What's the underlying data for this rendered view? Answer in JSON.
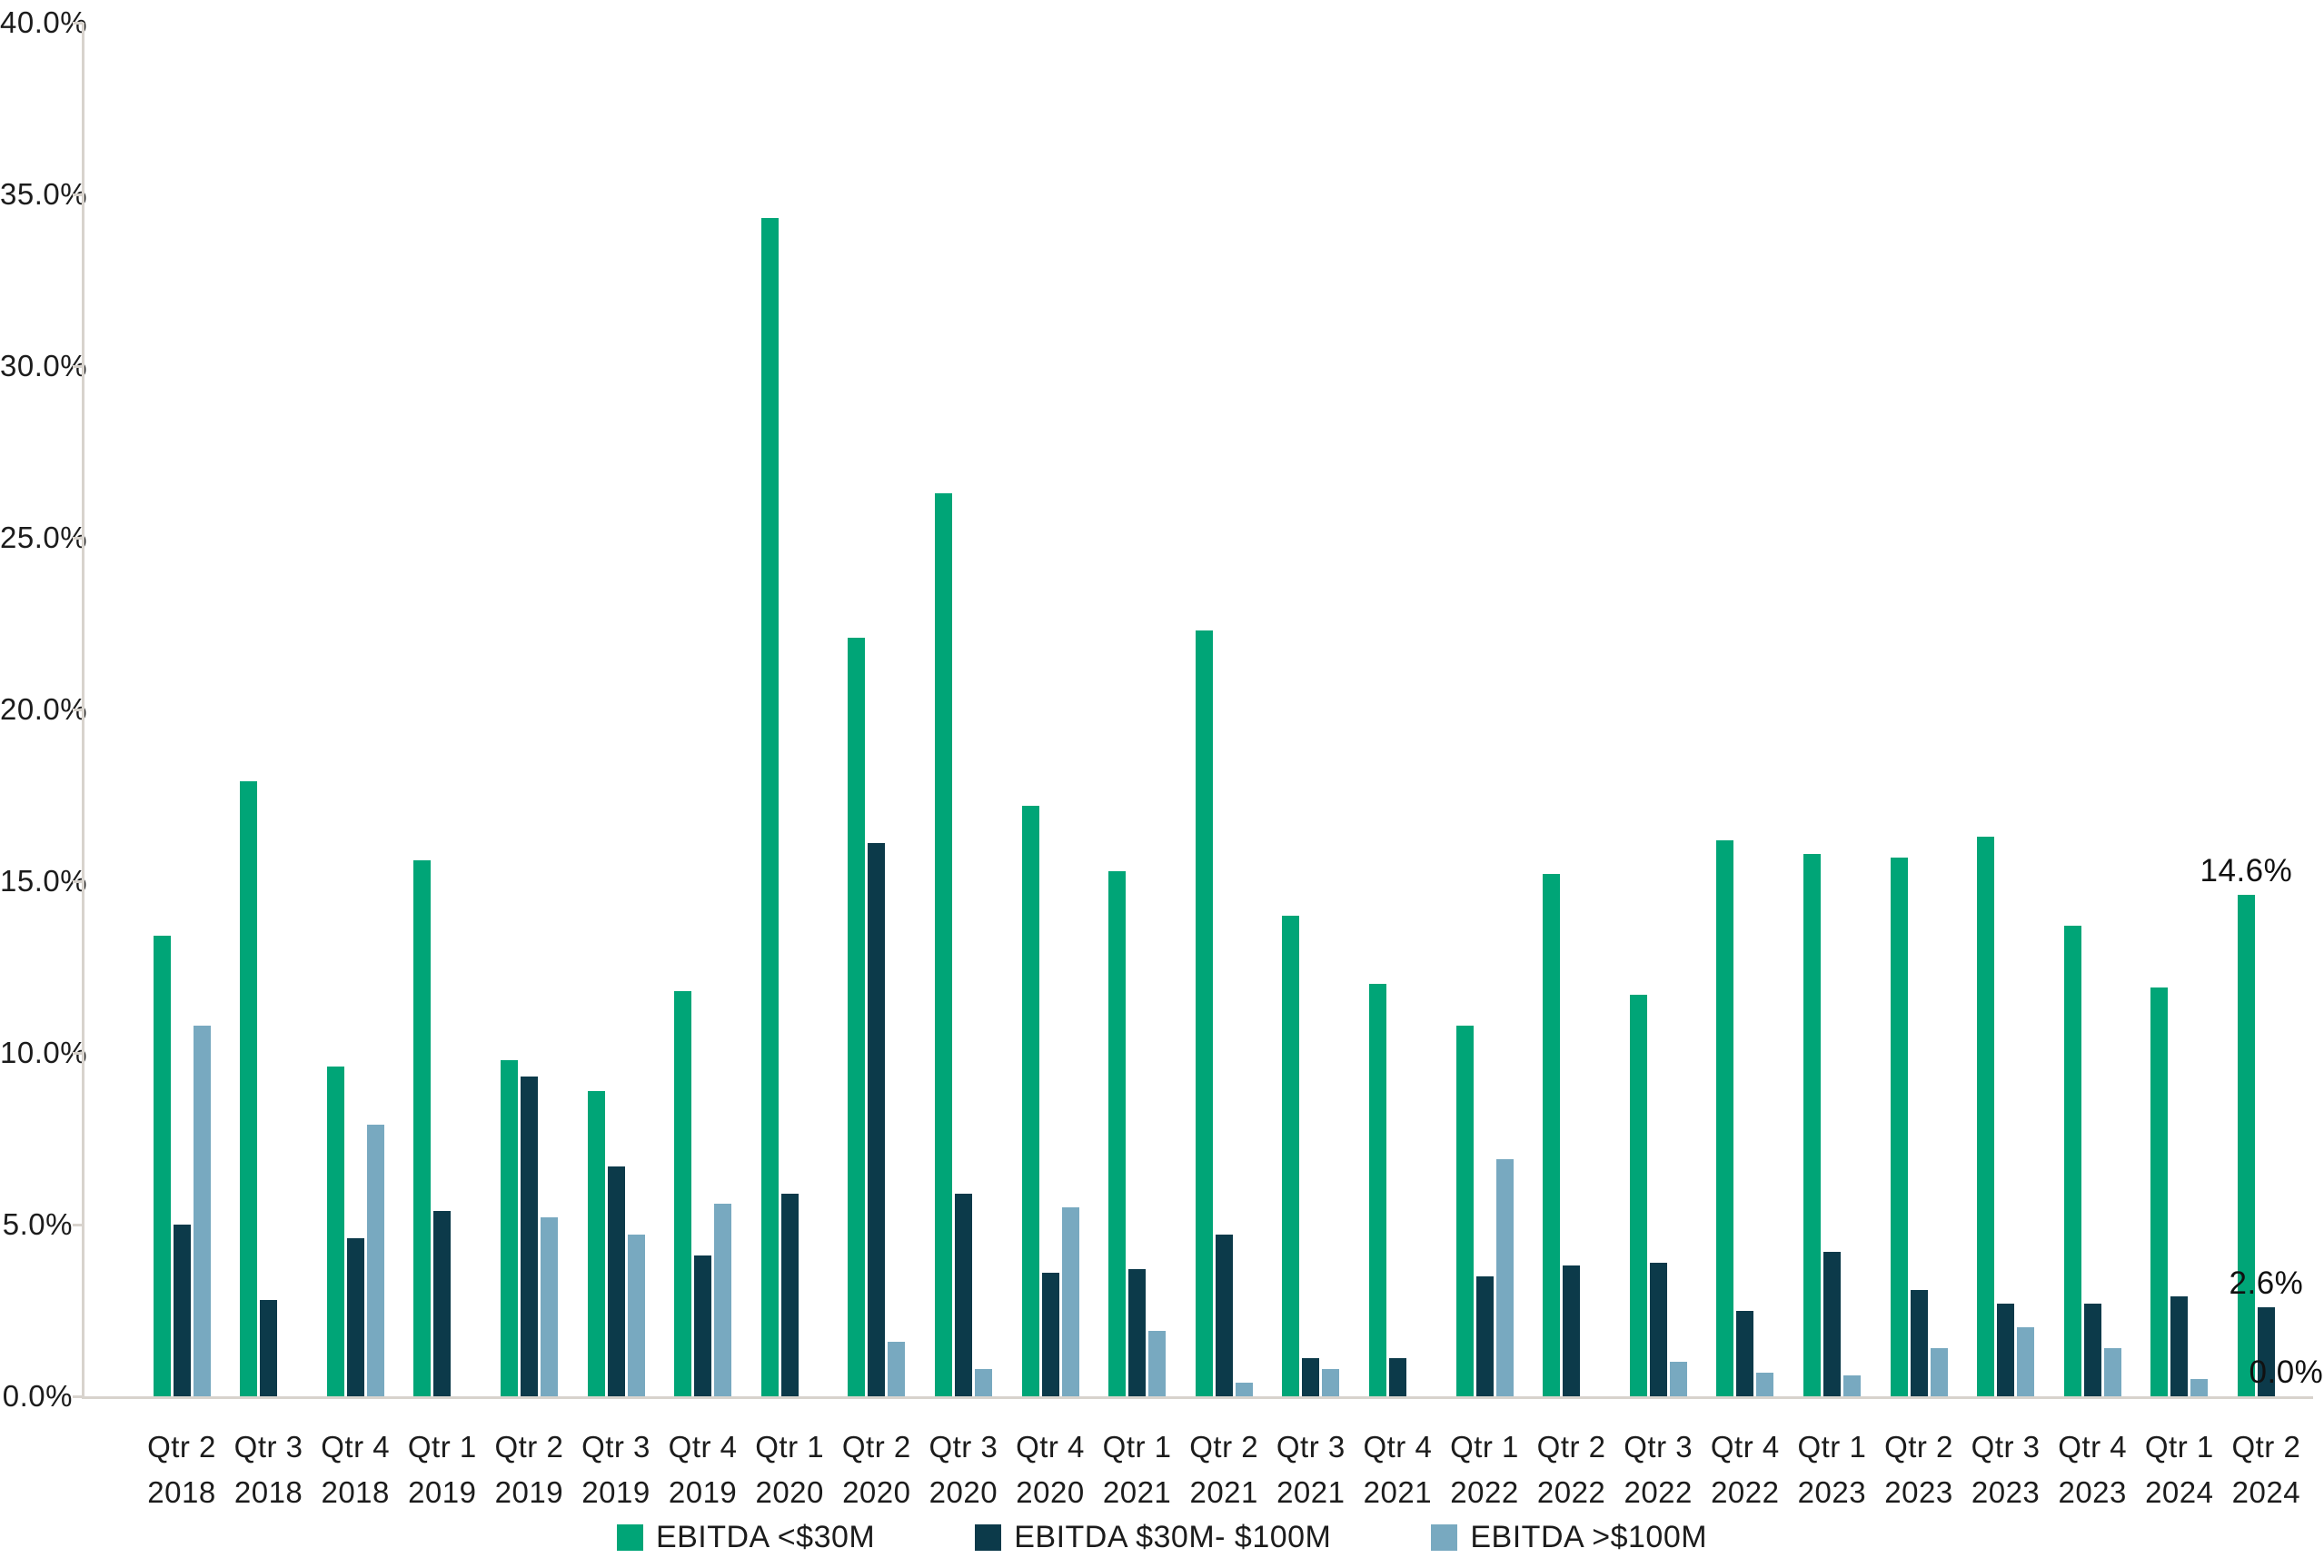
{
  "chart_data": {
    "type": "bar",
    "title": "",
    "xlabel": "",
    "ylabel": "",
    "ylim": [
      0,
      40
    ],
    "ytick_step": 5,
    "ytick_suffix": "%",
    "grid": false,
    "legend_position": "bottom",
    "categories": [
      {
        "qtr": "Qtr 2",
        "year": "2018"
      },
      {
        "qtr": "Qtr 3",
        "year": "2018"
      },
      {
        "qtr": "Qtr 4",
        "year": "2018"
      },
      {
        "qtr": "Qtr 1",
        "year": "2019"
      },
      {
        "qtr": "Qtr 2",
        "year": "2019"
      },
      {
        "qtr": "Qtr 3",
        "year": "2019"
      },
      {
        "qtr": "Qtr 4",
        "year": "2019"
      },
      {
        "qtr": "Qtr 1",
        "year": "2020"
      },
      {
        "qtr": "Qtr 2",
        "year": "2020"
      },
      {
        "qtr": "Qtr 3",
        "year": "2020"
      },
      {
        "qtr": "Qtr 4",
        "year": "2020"
      },
      {
        "qtr": "Qtr 1",
        "year": "2021"
      },
      {
        "qtr": "Qtr 2",
        "year": "2021"
      },
      {
        "qtr": "Qtr 3",
        "year": "2021"
      },
      {
        "qtr": "Qtr 4",
        "year": "2021"
      },
      {
        "qtr": "Qtr 1",
        "year": "2022"
      },
      {
        "qtr": "Qtr 2",
        "year": "2022"
      },
      {
        "qtr": "Qtr 3",
        "year": "2022"
      },
      {
        "qtr": "Qtr 4",
        "year": "2022"
      },
      {
        "qtr": "Qtr 1",
        "year": "2023"
      },
      {
        "qtr": "Qtr 2",
        "year": "2023"
      },
      {
        "qtr": "Qtr 3",
        "year": "2023"
      },
      {
        "qtr": "Qtr 4",
        "year": "2023"
      },
      {
        "qtr": "Qtr 1",
        "year": "2024"
      },
      {
        "qtr": "Qtr 2",
        "year": "2024"
      }
    ],
    "series": [
      {
        "name": "EBITDA <$30M",
        "color": "#00a577",
        "values": [
          13.4,
          17.9,
          9.6,
          15.6,
          9.8,
          8.9,
          11.8,
          34.3,
          22.1,
          26.3,
          17.2,
          15.3,
          22.3,
          14.0,
          12.0,
          10.8,
          15.2,
          11.7,
          16.2,
          15.8,
          15.7,
          16.3,
          13.7,
          11.9,
          14.6
        ]
      },
      {
        "name": "EBITDA $30M- $100M",
        "color": "#0c3a4a",
        "values": [
          5.0,
          2.8,
          4.6,
          5.4,
          9.3,
          6.7,
          4.1,
          5.9,
          16.1,
          5.9,
          3.6,
          3.7,
          4.7,
          1.1,
          1.1,
          3.5,
          3.8,
          3.9,
          2.5,
          4.2,
          3.1,
          2.7,
          2.7,
          2.9,
          2.6
        ]
      },
      {
        "name": "EBITDA >$100M",
        "color": "#78a9c0",
        "values": [
          10.8,
          0,
          7.9,
          0,
          5.2,
          4.7,
          5.6,
          0,
          1.6,
          0.8,
          5.5,
          1.9,
          0.4,
          0.8,
          0,
          6.9,
          0,
          1.0,
          0.7,
          0.6,
          1.4,
          2.0,
          1.4,
          0.5,
          0
        ]
      }
    ],
    "annotations": [
      {
        "text": "14.6%",
        "series": 0,
        "category": 24
      },
      {
        "text": "2.6%",
        "series": 1,
        "category": 24
      },
      {
        "text": "0.0%",
        "series": 2,
        "category": 24
      }
    ]
  },
  "style": {
    "axis_color": "#d8d3cd",
    "text_color": "#1c1c1c",
    "background": "#ffffff"
  }
}
